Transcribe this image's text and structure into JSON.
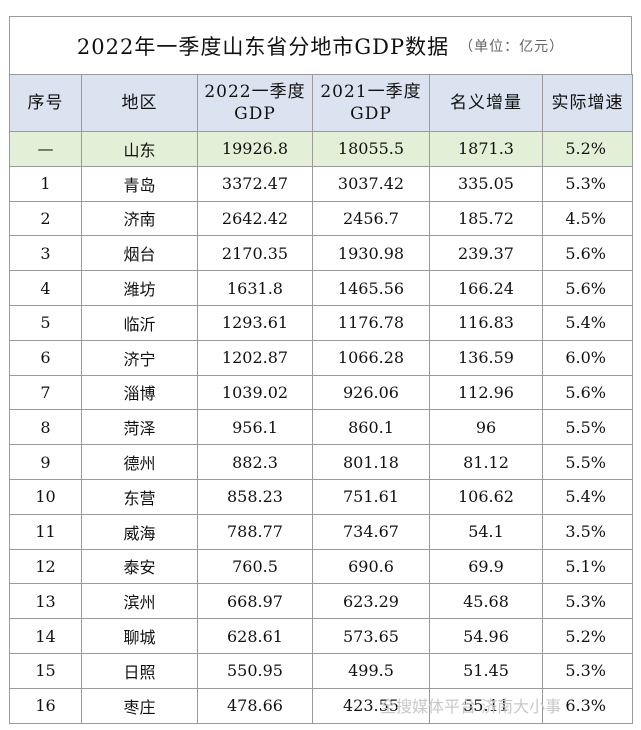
{
  "title": "2022年一季度山东省分地市GDP数据",
  "unit": "（单位：亿元）",
  "headers": {
    "no": "序号",
    "region": "地区",
    "gdp2022": "2022一季度GDP",
    "gdp2021": "2021一季度GDP",
    "nominal": "名义增量",
    "real": "实际增速"
  },
  "rows": [
    {
      "no": "—",
      "region": "山东",
      "gdp2022": "19926.8",
      "gdp2021": "18055.5",
      "nominal": "1871.3",
      "real": "5.2%"
    },
    {
      "no": "1",
      "region": "青岛",
      "gdp2022": "3372.47",
      "gdp2021": "3037.42",
      "nominal": "335.05",
      "real": "5.3%"
    },
    {
      "no": "2",
      "region": "济南",
      "gdp2022": "2642.42",
      "gdp2021": "2456.7",
      "nominal": "185.72",
      "real": "4.5%"
    },
    {
      "no": "3",
      "region": "烟台",
      "gdp2022": "2170.35",
      "gdp2021": "1930.98",
      "nominal": "239.37",
      "real": "5.6%"
    },
    {
      "no": "4",
      "region": "潍坊",
      "gdp2022": "1631.8",
      "gdp2021": "1465.56",
      "nominal": "166.24",
      "real": "5.6%"
    },
    {
      "no": "5",
      "region": "临沂",
      "gdp2022": "1293.61",
      "gdp2021": "1176.78",
      "nominal": "116.83",
      "real": "5.4%"
    },
    {
      "no": "6",
      "region": "济宁",
      "gdp2022": "1202.87",
      "gdp2021": "1066.28",
      "nominal": "136.59",
      "real": "6.0%"
    },
    {
      "no": "7",
      "region": "淄博",
      "gdp2022": "1039.02",
      "gdp2021": "926.06",
      "nominal": "112.96",
      "real": "5.6%"
    },
    {
      "no": "8",
      "region": "菏泽",
      "gdp2022": "956.1",
      "gdp2021": "860.1",
      "nominal": "96",
      "real": "5.5%"
    },
    {
      "no": "9",
      "region": "德州",
      "gdp2022": "882.3",
      "gdp2021": "801.18",
      "nominal": "81.12",
      "real": "5.5%"
    },
    {
      "no": "10",
      "region": "东营",
      "gdp2022": "858.23",
      "gdp2021": "751.61",
      "nominal": "106.62",
      "real": "5.4%"
    },
    {
      "no": "11",
      "region": "威海",
      "gdp2022": "788.77",
      "gdp2021": "734.67",
      "nominal": "54.1",
      "real": "3.5%"
    },
    {
      "no": "12",
      "region": "泰安",
      "gdp2022": "760.5",
      "gdp2021": "690.6",
      "nominal": "69.9",
      "real": "5.1%"
    },
    {
      "no": "13",
      "region": "滨州",
      "gdp2022": "668.97",
      "gdp2021": "623.29",
      "nominal": "45.68",
      "real": "5.3%"
    },
    {
      "no": "14",
      "region": "聊城",
      "gdp2022": "628.61",
      "gdp2021": "573.65",
      "nominal": "54.96",
      "real": "5.2%"
    },
    {
      "no": "15",
      "region": "日照",
      "gdp2022": "550.95",
      "gdp2021": "499.5",
      "nominal": "51.45",
      "real": "5.3%"
    },
    {
      "no": "16",
      "region": "枣庄",
      "gdp2022": "478.66",
      "gdp2021": "423.55",
      "nominal": "55.11",
      "real": "6.3%"
    }
  ],
  "watermark": "全搜媒体平台 济南大小事"
}
